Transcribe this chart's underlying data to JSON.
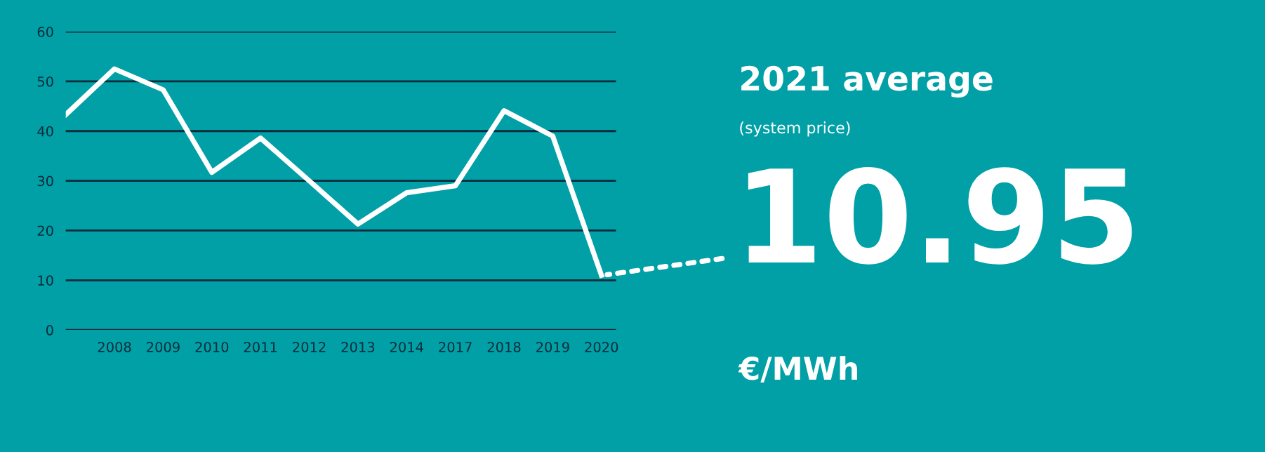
{
  "chart_data": {
    "type": "line",
    "title": "2021 average",
    "subtitle": "(system price)",
    "categories": [
      null,
      "2008",
      "2009",
      "2010",
      "2011",
      "2012",
      "2013",
      "2014",
      "2017",
      "2018",
      "2019",
      "2020"
    ],
    "series": [
      {
        "color": "#ffffff",
        "values": [
          43.3,
          52.5,
          48.3,
          31.7,
          38.6,
          30,
          21.3,
          27.6,
          29,
          44.1,
          39,
          11
        ]
      }
    ],
    "annotations": [
      {
        "text": "10.95",
        "x": "2020",
        "y": 10.95
      },
      "€/MWh"
    ],
    "ylim": [
      0,
      60
    ],
    "yticks": [
      0,
      10,
      20,
      30,
      40,
      50,
      60
    ],
    "grid": "y",
    "legend": false,
    "marker": "none",
    "line_style": "solid"
  }
}
